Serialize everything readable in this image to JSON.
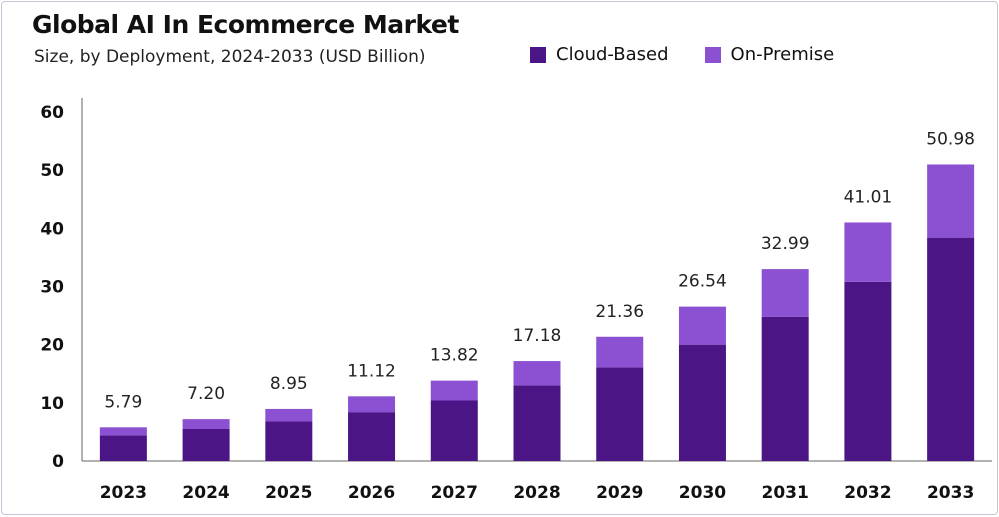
{
  "title": "Global AI In Ecommerce Market",
  "subtitle": "Size, by Deployment, 2024-2033 (USD Billion)",
  "colors": {
    "cloud": "#4b1585",
    "premise": "#8c50d2",
    "axis": "#666666"
  },
  "chart_data": {
    "type": "bar",
    "stacked": true,
    "categories": [
      "2023",
      "2024",
      "2025",
      "2026",
      "2027",
      "2028",
      "2029",
      "2030",
      "2031",
      "2032",
      "2033"
    ],
    "series": [
      {
        "name": "Cloud-Based",
        "values": [
          4.4,
          5.5,
          6.8,
          8.4,
          10.4,
          13.0,
          16.1,
          20.0,
          24.8,
          30.8,
          38.4
        ]
      },
      {
        "name": "On-Premise",
        "values": [
          1.39,
          1.7,
          2.15,
          2.72,
          3.42,
          4.18,
          5.26,
          6.54,
          8.19,
          10.21,
          12.58
        ]
      }
    ],
    "totals": [
      "5.79",
      "7.20",
      "8.95",
      "11.12",
      "13.82",
      "17.18",
      "21.36",
      "26.54",
      "32.99",
      "41.01",
      "50.98"
    ],
    "yticks": [
      "0",
      "10",
      "20",
      "30",
      "40",
      "50",
      "60"
    ],
    "ylim": [
      0,
      60
    ],
    "legend_position": "top-right",
    "grid": false
  }
}
